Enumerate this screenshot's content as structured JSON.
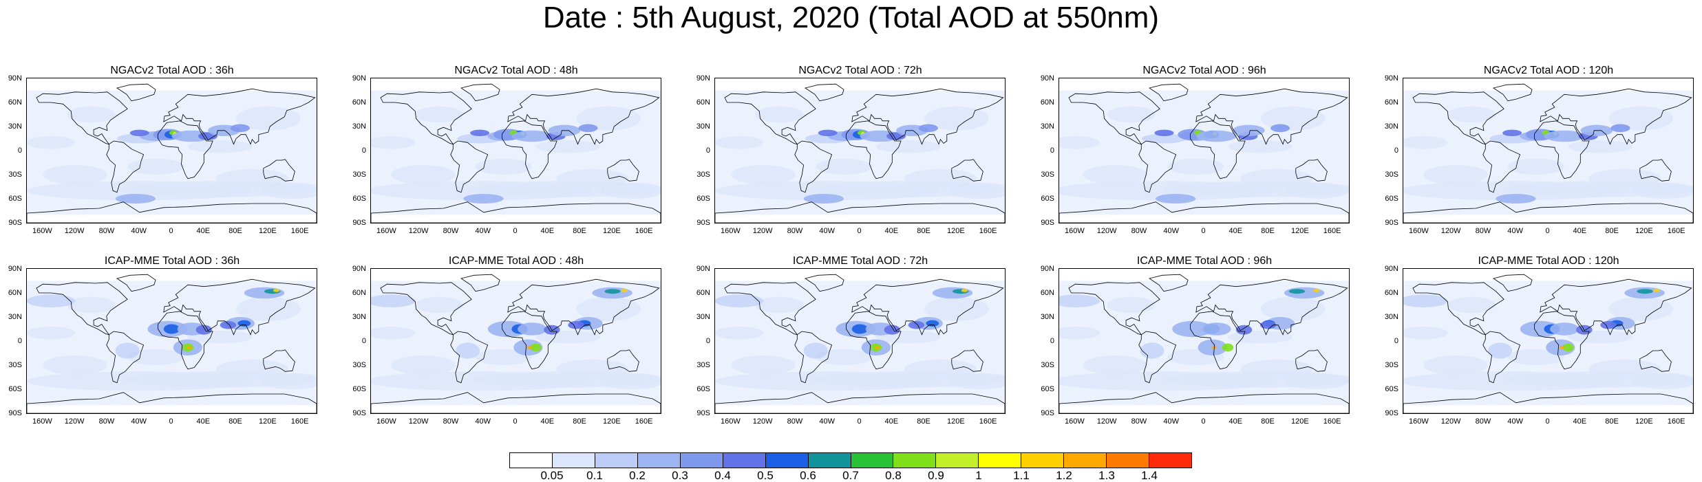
{
  "title": "Date : 5th August, 2020 (Total AOD at 550nm)",
  "panels": [
    {
      "title": "NGACv2 Total AOD : 36h",
      "model": "NGACv2",
      "lead": 36
    },
    {
      "title": "NGACv2 Total AOD : 48h",
      "model": "NGACv2",
      "lead": 48
    },
    {
      "title": "NGACv2 Total AOD : 72h",
      "model": "NGACv2",
      "lead": 72
    },
    {
      "title": "NGACv2 Total AOD : 96h",
      "model": "NGACv2",
      "lead": 96
    },
    {
      "title": "NGACv2 Total AOD : 120h",
      "model": "NGACv2",
      "lead": 120
    },
    {
      "title": "ICAP-MME Total AOD : 36h",
      "model": "ICAP-MME",
      "lead": 36
    },
    {
      "title": "ICAP-MME Total AOD : 48h",
      "model": "ICAP-MME",
      "lead": 48
    },
    {
      "title": "ICAP-MME Total AOD : 72h",
      "model": "ICAP-MME",
      "lead": 72
    },
    {
      "title": "ICAP-MME Total AOD : 96h",
      "model": "ICAP-MME",
      "lead": 96
    },
    {
      "title": "ICAP-MME Total AOD : 120h",
      "model": "ICAP-MME",
      "lead": 120
    }
  ],
  "lat_labels": [
    "90N",
    "60N",
    "30N",
    "0",
    "30S",
    "60S",
    "90S"
  ],
  "lon_labels": [
    "160W",
    "120W",
    "80W",
    "40W",
    "0",
    "40E",
    "80E",
    "120E",
    "160E"
  ],
  "colorbar": {
    "labels": [
      "0.05",
      "0.1",
      "0.2",
      "0.3",
      "0.4",
      "0.5",
      "0.6",
      "0.7",
      "0.8",
      "0.9",
      "1",
      "1.1",
      "1.2",
      "1.3",
      "1.4"
    ],
    "colors": [
      "#ffffff",
      "#dbe5fb",
      "#bccdf7",
      "#9cb4f2",
      "#7f99ee",
      "#6273e8",
      "#1a5fe5",
      "#12939b",
      "#27c236",
      "#7fe01a",
      "#c3ee2a",
      "#ffff00",
      "#ffd000",
      "#ffa900",
      "#ff7a00",
      "#ff2a0a"
    ]
  },
  "palette": {
    "background": "#ffffff",
    "coast": "#000000",
    "low_aod": "#dbe5fb"
  }
}
